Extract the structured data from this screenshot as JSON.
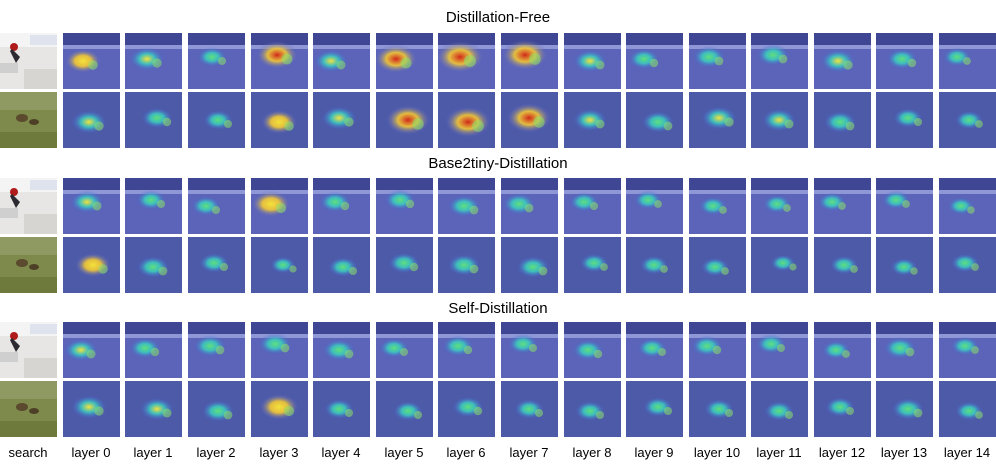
{
  "sections": [
    {
      "title": "Distillation-Free"
    },
    {
      "title": "Base2tiny-Distillation"
    },
    {
      "title": "Self-Distillation"
    }
  ],
  "columns": [
    "search",
    "layer 0",
    "layer 1",
    "layer 2",
    "layer 3",
    "layer 4",
    "layer 5",
    "layer 6",
    "layer 7",
    "layer 8",
    "layer 9",
    "layer 10",
    "layer 11",
    "layer 12",
    "layer 13",
    "layer 14"
  ],
  "rows": [
    {
      "scene": "track",
      "hot": [
        1,
        0.6,
        0.55,
        0.35,
        0.8,
        0.5,
        0.85,
        1,
        0.95,
        0.5,
        0.4,
        0.45,
        0.45,
        0.55,
        0.4,
        0.3
      ]
    },
    {
      "scene": "grass",
      "hot": [
        0,
        0.55,
        0.4,
        0.35,
        0.6,
        0.55,
        0.9,
        0.95,
        0.9,
        0.5,
        0.45,
        0.55,
        0.5,
        0.45,
        0.35,
        0.3
      ]
    },
    {
      "scene": "track",
      "hot": [
        1,
        0.5,
        0.35,
        0.35,
        0.7,
        0.4,
        0.4,
        0.45,
        0.45,
        0.35,
        0.3,
        0.3,
        0.3,
        0.3,
        0.3,
        0.25
      ]
    },
    {
      "scene": "grass",
      "hot": [
        0,
        0.6,
        0.45,
        0.35,
        0.2,
        0.35,
        0.4,
        0.45,
        0.45,
        0.3,
        0.3,
        0.3,
        0.2,
        0.3,
        0.25,
        0.3
      ]
    },
    {
      "scene": "track",
      "hot": [
        1,
        0.5,
        0.4,
        0.45,
        0.45,
        0.45,
        0.35,
        0.4,
        0.35,
        0.4,
        0.35,
        0.4,
        0.35,
        0.3,
        0.45,
        0.3
      ]
    },
    {
      "scene": "grass",
      "hot": [
        0,
        0.55,
        0.5,
        0.45,
        0.7,
        0.35,
        0.35,
        0.4,
        0.35,
        0.35,
        0.35,
        0.35,
        0.35,
        0.35,
        0.45,
        0.3
      ]
    }
  ]
}
